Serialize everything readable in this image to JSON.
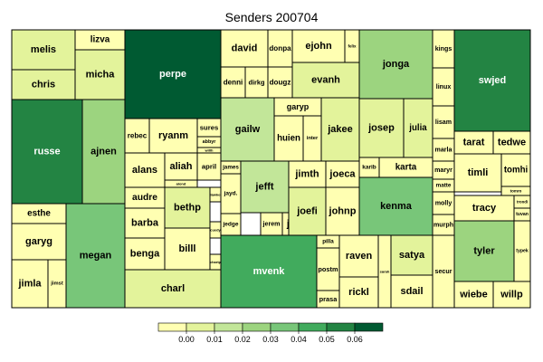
{
  "chart_data": {
    "type": "treemap",
    "title": "Senders 200704",
    "legend": {
      "ticks": [
        "0.00",
        "0.01",
        "0.02",
        "0.03",
        "0.04",
        "0.05",
        "0.06"
      ],
      "colors": [
        "#FFFFB2",
        "#E3F39B",
        "#C2E699",
        "#9CD47F",
        "#78C679",
        "#41AB5D",
        "#238443",
        "#005A32"
      ]
    },
    "cells": [
      {
        "name": "melis",
        "value": 0.01
      },
      {
        "name": "lizva",
        "value": 0.003
      },
      {
        "name": "chris",
        "value": 0.008
      },
      {
        "name": "micha",
        "value": 0.012
      },
      {
        "name": "perpe",
        "value": 0.06
      },
      {
        "name": "russe",
        "value": 0.05
      },
      {
        "name": "ajnen",
        "value": 0.025
      },
      {
        "name": "esthe",
        "value": 0.003
      },
      {
        "name": "garyg",
        "value": 0.005
      },
      {
        "name": "megan",
        "value": 0.035
      },
      {
        "name": "jimla",
        "value": 0.007
      },
      {
        "name": "jimst",
        "value": 0.002
      },
      {
        "name": "rebec",
        "value": 0.002
      },
      {
        "name": "ryanm",
        "value": 0.005
      },
      {
        "name": "sures",
        "value": 0.002
      },
      {
        "name": "abbyr",
        "value": 0.002
      },
      {
        "name": "willh",
        "value": 0.001
      },
      {
        "name": "alans",
        "value": 0.004
      },
      {
        "name": "aliah",
        "value": 0.005
      },
      {
        "name": "april",
        "value": 0.004
      },
      {
        "name": "alond",
        "value": 0.001
      },
      {
        "name": "audre",
        "value": 0.002
      },
      {
        "name": "bethp",
        "value": 0.008
      },
      {
        "name": "barba",
        "value": 0.005
      },
      {
        "name": "benga",
        "value": 0.005
      },
      {
        "name": "billl",
        "value": 0.005
      },
      {
        "name": "james",
        "value": 0.001
      },
      {
        "name": "jayd.",
        "value": 0.003
      },
      {
        "name": "lawke",
        "value": 0.001
      },
      {
        "name": "jedge",
        "value": 0.002
      },
      {
        "name": "cuedy",
        "value": 0.001
      },
      {
        "name": "chartp",
        "value": 0.001
      },
      {
        "name": "charl",
        "value": 0.012
      },
      {
        "name": "david",
        "value": 0.004
      },
      {
        "name": "donpa",
        "value": 0.002
      },
      {
        "name": "ejohn",
        "value": 0.005
      },
      {
        "name": "felix",
        "value": 0.001
      },
      {
        "name": "denni",
        "value": 0.002
      },
      {
        "name": "dirkg",
        "value": 0.002
      },
      {
        "name": "dougz",
        "value": 0.001
      },
      {
        "name": "evanh",
        "value": 0.01
      },
      {
        "name": "garyp",
        "value": 0.003
      },
      {
        "name": "gailw",
        "value": 0.02
      },
      {
        "name": "huien",
        "value": 0.005
      },
      {
        "name": "inter",
        "value": 0.003
      },
      {
        "name": "jakee",
        "value": 0.015
      },
      {
        "name": "jefft",
        "value": 0.02
      },
      {
        "name": "jerem",
        "value": 0.001
      },
      {
        "name": "jgree",
        "value": 0.003
      },
      {
        "name": "jimth",
        "value": 0.005
      },
      {
        "name": "joeca",
        "value": 0.004
      },
      {
        "name": "joefi",
        "value": 0.008
      },
      {
        "name": "johnp",
        "value": 0.004
      },
      {
        "name": "mvenk",
        "value": 0.04
      },
      {
        "name": "jonga",
        "value": 0.03
      },
      {
        "name": "josep",
        "value": 0.01
      },
      {
        "name": "julia",
        "value": 0.008
      },
      {
        "name": "karib",
        "value": 0.003
      },
      {
        "name": "karta",
        "value": 0.004
      },
      {
        "name": "kenma",
        "value": 0.035
      },
      {
        "name": "pilla",
        "value": 0.002
      },
      {
        "name": "postm",
        "value": 0.001
      },
      {
        "name": "prasa",
        "value": 0.002
      },
      {
        "name": "raven",
        "value": 0.005
      },
      {
        "name": "rickl",
        "value": 0.003
      },
      {
        "name": "sarah",
        "value": 0.001
      },
      {
        "name": "satya",
        "value": 0.008
      },
      {
        "name": "sdail",
        "value": 0.003
      },
      {
        "name": "secur",
        "value": 0.002
      },
      {
        "name": "kings",
        "value": 0.002
      },
      {
        "name": "linux",
        "value": 0.002
      },
      {
        "name": "lisam",
        "value": 0.002
      },
      {
        "name": "marla",
        "value": 0.002
      },
      {
        "name": "maryr",
        "value": 0.002
      },
      {
        "name": "matte",
        "value": 0.002
      },
      {
        "name": "molly",
        "value": 0.002
      },
      {
        "name": "murph",
        "value": 0.002
      },
      {
        "name": "swjed",
        "value": 0.05
      },
      {
        "name": "tarat",
        "value": 0.003
      },
      {
        "name": "tedwe",
        "value": 0.004
      },
      {
        "name": "timli",
        "value": 0.004
      },
      {
        "name": "tomhi",
        "value": 0.003
      },
      {
        "name": "tomro",
        "value": 0.001
      },
      {
        "name": "tracy",
        "value": 0.006
      },
      {
        "name": "trondi",
        "value": 0.001
      },
      {
        "name": "tuvan",
        "value": 0.001
      },
      {
        "name": "tyler",
        "value": 0.025
      },
      {
        "name": "typek",
        "value": 0.001
      },
      {
        "name": "wiebe",
        "value": 0.004
      },
      {
        "name": "willp",
        "value": 0.004
      }
    ]
  }
}
